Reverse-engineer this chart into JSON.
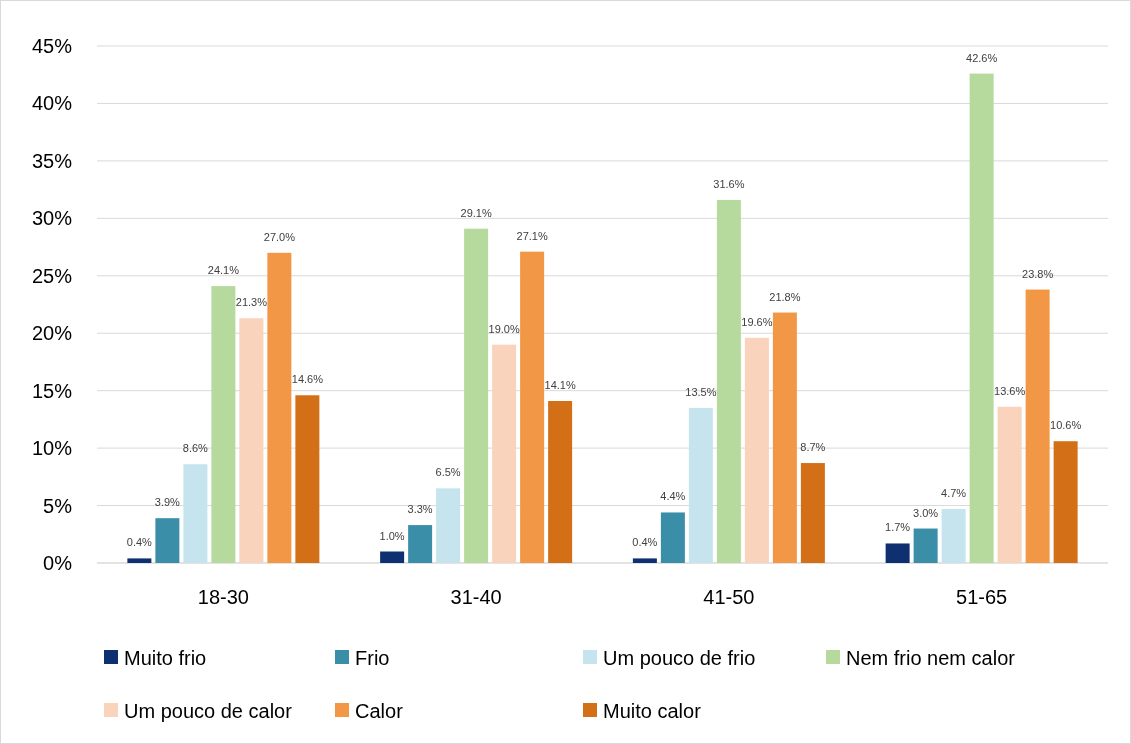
{
  "chart_data": {
    "type": "bar",
    "categories": [
      "18-30",
      "31-40",
      "41-50",
      "51-65"
    ],
    "series": [
      {
        "name": "Muito frio",
        "color": "#0e3070",
        "values": [
          0.4,
          1.0,
          0.4,
          1.7
        ],
        "value_labels": [
          "0.4%",
          "1.0%",
          "0.4%",
          "1.7%"
        ]
      },
      {
        "name": "Frio",
        "color": "#3b8ea8",
        "values": [
          3.9,
          3.3,
          4.4,
          3.0
        ],
        "value_labels": [
          "3.9%",
          "3.3%",
          "4.4%",
          "3.0%"
        ]
      },
      {
        "name": "Um pouco de frio",
        "color": "#c6e4ee",
        "values": [
          8.6,
          6.5,
          13.5,
          4.7
        ],
        "value_labels": [
          "8.6%",
          "6.5%",
          "13.5%",
          "4.7%"
        ]
      },
      {
        "name": "Nem frio nem calor",
        "color": "#b6d99e",
        "values": [
          24.1,
          29.1,
          31.6,
          42.6
        ],
        "value_labels": [
          "24.1%",
          "29.1%",
          "31.6%",
          "42.6%"
        ]
      },
      {
        "name": "Um pouco de calor",
        "color": "#f9d3bb",
        "values": [
          21.3,
          19.0,
          19.6,
          13.6
        ],
        "value_labels": [
          "21.3%",
          "19.0%",
          "19.6%",
          "13.6%"
        ]
      },
      {
        "name": "Calor",
        "color": "#f29745",
        "values": [
          27.0,
          27.1,
          21.8,
          23.8
        ],
        "value_labels": [
          "27.0%",
          "27.1%",
          "21.8%",
          "23.8%"
        ]
      },
      {
        "name": "Muito calor",
        "color": "#d36f17",
        "values": [
          14.6,
          14.1,
          8.7,
          10.6
        ],
        "value_labels": [
          "14.6%",
          "14.1%",
          "8.7%",
          "10.6%"
        ]
      }
    ],
    "ylim": [
      0,
      45
    ],
    "yticks": [
      {
        "value": 0,
        "label": "0%"
      },
      {
        "value": 5,
        "label": "5%"
      },
      {
        "value": 10,
        "label": "10%"
      },
      {
        "value": 15,
        "label": "15%"
      },
      {
        "value": 20,
        "label": "20%"
      },
      {
        "value": 25,
        "label": "25%"
      },
      {
        "value": 30,
        "label": "30%"
      },
      {
        "value": 35,
        "label": "35%"
      },
      {
        "value": 40,
        "label": "40%"
      },
      {
        "value": 45,
        "label": "45%"
      }
    ],
    "grid": "y",
    "legend": "bottom"
  }
}
